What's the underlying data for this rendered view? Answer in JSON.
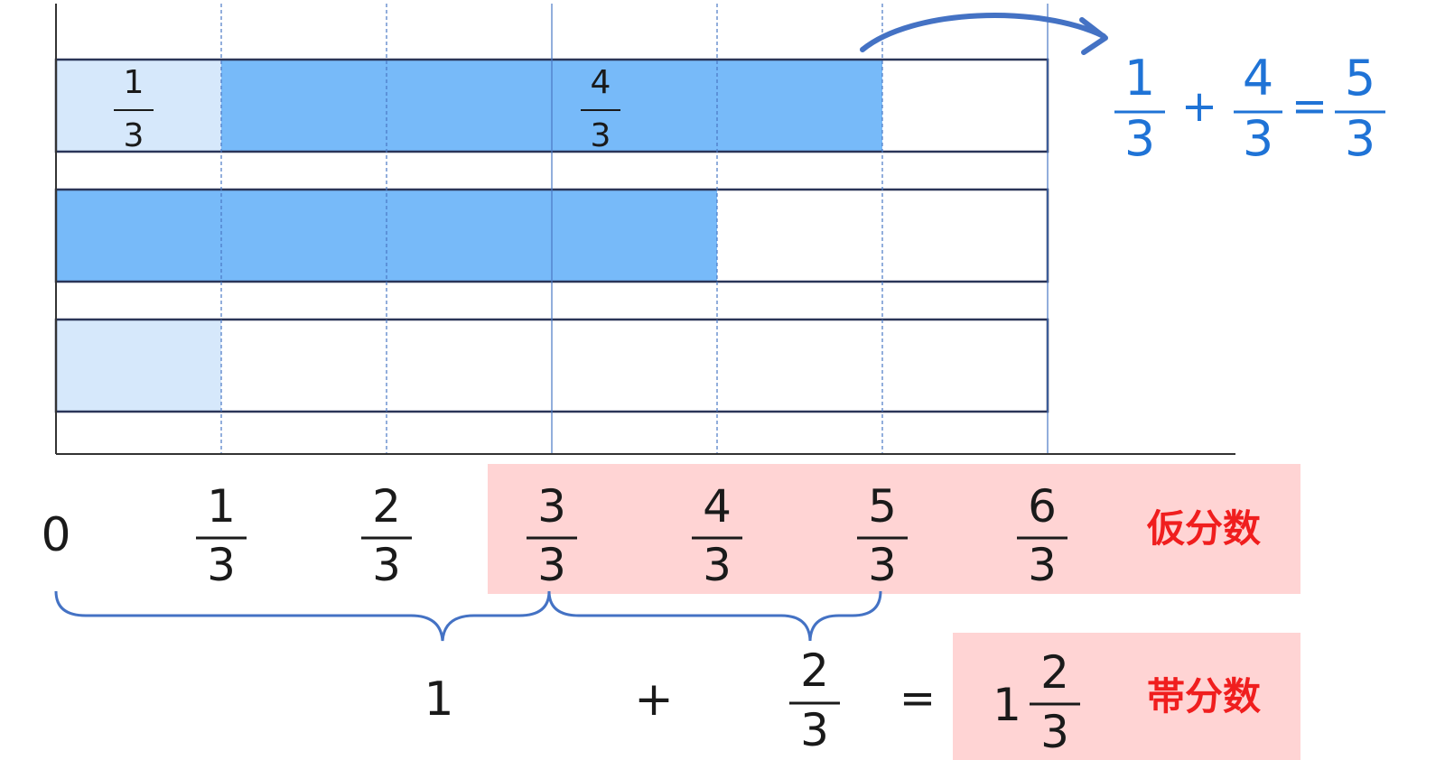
{
  "colors": {
    "light_fill": "#d6e8fb",
    "dark_fill": "#77baf9",
    "bar_border": "#2a3558",
    "guide_line": "#4a78c4",
    "brace": "#4472c4",
    "equation_blue": "#1f73d6",
    "highlight_box": "#ffd4d4",
    "label_red": "#f01e1e",
    "text": "#1a1a1a"
  },
  "bars": [
    {
      "id": "bar-top",
      "segments": [
        {
          "fill": "light",
          "from_thirds": 0,
          "to_thirds": 1,
          "label_num": "1",
          "label_den": "3"
        },
        {
          "fill": "dark",
          "from_thirds": 1,
          "to_thirds": 5,
          "label_num": "4",
          "label_den": "3"
        }
      ]
    },
    {
      "id": "bar-middle",
      "segments": [
        {
          "fill": "dark",
          "from_thirds": 0,
          "to_thirds": 4
        }
      ]
    },
    {
      "id": "bar-bottom",
      "segments": [
        {
          "fill": "light",
          "from_thirds": 0,
          "to_thirds": 1
        }
      ]
    }
  ],
  "axis": {
    "zero": "0",
    "ticks": [
      {
        "num": "1",
        "den": "3"
      },
      {
        "num": "2",
        "den": "3"
      },
      {
        "num": "3",
        "den": "3"
      },
      {
        "num": "4",
        "den": "3"
      },
      {
        "num": "5",
        "den": "3"
      },
      {
        "num": "6",
        "den": "3"
      }
    ]
  },
  "equation": {
    "a_num": "1",
    "a_den": "3",
    "plus": "+",
    "b_num": "4",
    "b_den": "3",
    "equals": "=",
    "c_num": "5",
    "c_den": "3"
  },
  "improper_label": "仮分数",
  "mixed_label": "帯分数",
  "bottom_equation": {
    "one": "1",
    "plus": "+",
    "frac_num": "2",
    "frac_den": "3",
    "equals": "=",
    "mixed_whole": "1",
    "mixed_num": "2",
    "mixed_den": "3"
  }
}
